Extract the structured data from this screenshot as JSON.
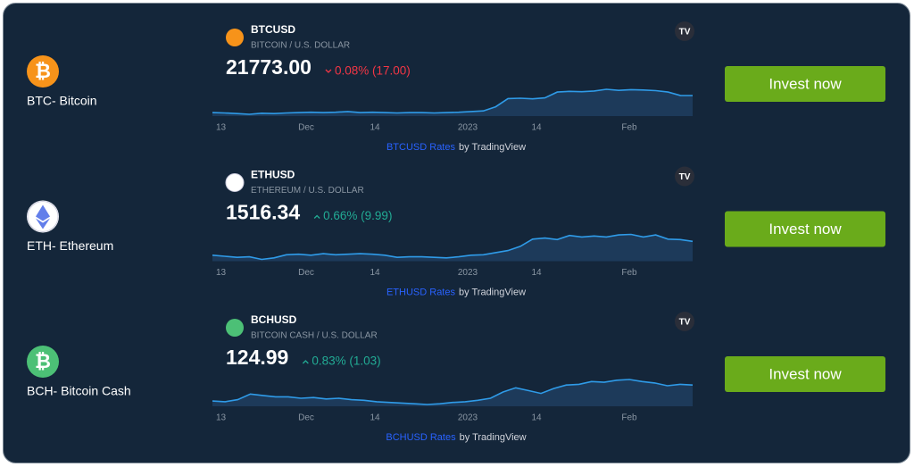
{
  "rows": [
    {
      "label": "BTC- Bitcoin",
      "button": "Invest now",
      "widget": {
        "symbol": "BTCUSD",
        "name": "BITCOIN / U.S. DOLLAR",
        "price": "21773.00",
        "change": "0.08% (17.00)",
        "change_color": "#f23645",
        "x_labels": [
          "13",
          "Dec",
          "14",
          "2023",
          "14",
          "Feb"
        ],
        "link": "BTCUSD Rates",
        "by": "by TradingView",
        "values": [
          16800,
          16700,
          16500,
          16300,
          16600,
          16500,
          16700,
          16800,
          16900,
          16800,
          16900,
          17100,
          16800,
          16900,
          16800,
          16700,
          16800,
          16800,
          16700,
          16800,
          16900,
          17100,
          17300,
          18500,
          20900,
          21000,
          20800,
          21100,
          22800,
          23000,
          22900,
          23100,
          23600,
          23300,
          23500,
          23400,
          23200,
          22800,
          21800,
          21773
        ]
      }
    },
    {
      "label": "ETH- Ethereum",
      "button": "Invest now",
      "widget": {
        "symbol": "ETHUSD",
        "name": "ETHEREUM / U.S. DOLLAR",
        "price": "1516.34",
        "change": "0.66% (9.99)",
        "change_color": "#22ab94",
        "x_labels": [
          "13",
          "Dec",
          "14",
          "2023",
          "14",
          "Feb"
        ],
        "link": "ETHUSD Rates",
        "by": "by TradingView",
        "values": [
          1250,
          1230,
          1210,
          1220,
          1170,
          1200,
          1260,
          1270,
          1250,
          1280,
          1260,
          1270,
          1280,
          1270,
          1250,
          1210,
          1220,
          1220,
          1210,
          1200,
          1220,
          1250,
          1260,
          1300,
          1340,
          1420,
          1560,
          1580,
          1550,
          1630,
          1600,
          1620,
          1600,
          1640,
          1650,
          1600,
          1640,
          1560,
          1550,
          1516
        ]
      }
    },
    {
      "label": "BCH- Bitcoin Cash",
      "button": "Invest now",
      "widget": {
        "symbol": "BCHUSD",
        "name": "BITCOIN CASH / U.S. DOLLAR",
        "price": "124.99",
        "change": "0.83% (1.03)",
        "change_color": "#22ab94",
        "x_labels": [
          "13",
          "Dec",
          "14",
          "2023",
          "14",
          "Feb"
        ],
        "link": "BCHUSD Rates",
        "by": "by TradingView",
        "values": [
          102,
          101,
          104,
          112,
          110,
          108,
          108,
          106,
          107,
          105,
          106,
          104,
          103,
          101,
          100,
          99,
          98,
          97,
          98,
          100,
          101,
          103,
          106,
          115,
          121,
          117,
          113,
          120,
          125,
          126,
          130,
          129,
          132,
          133,
          130,
          128,
          124,
          126,
          125
        ]
      }
    }
  ]
}
